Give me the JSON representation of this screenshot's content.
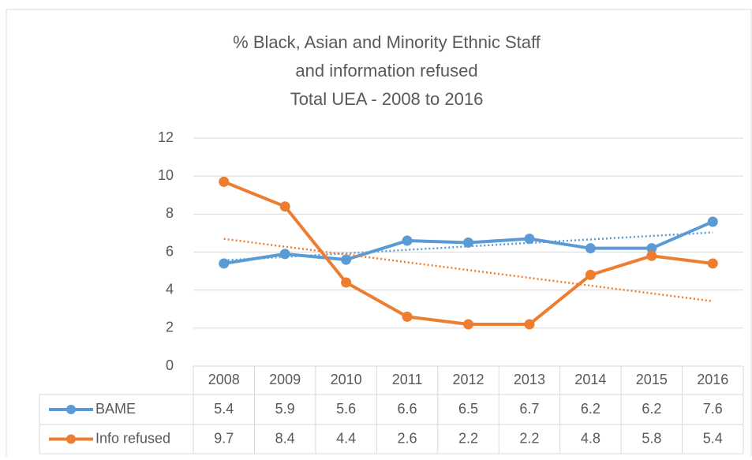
{
  "chart_data": {
    "type": "line",
    "title": [
      "% Black, Asian and Minority Ethnic Staff",
      "and information refused",
      "Total UEA - 2008 to 2016"
    ],
    "categories": [
      "2008",
      "2009",
      "2010",
      "2011",
      "2012",
      "2013",
      "2014",
      "2015",
      "2016"
    ],
    "series": [
      {
        "name": "BAME",
        "color": "#5b9bd5",
        "values": [
          5.4,
          5.9,
          5.6,
          6.6,
          6.5,
          6.7,
          6.2,
          6.2,
          7.6
        ],
        "trendline": "linear"
      },
      {
        "name": "Info refused",
        "color": "#ed7d31",
        "values": [
          9.7,
          8.4,
          4.4,
          2.6,
          2.2,
          2.2,
          4.8,
          5.8,
          5.4
        ],
        "trendline": "linear"
      }
    ],
    "ylim": [
      0,
      12
    ],
    "yticks": [
      0,
      2,
      4,
      6,
      8,
      10,
      12
    ],
    "grid": true,
    "data_table": true
  }
}
